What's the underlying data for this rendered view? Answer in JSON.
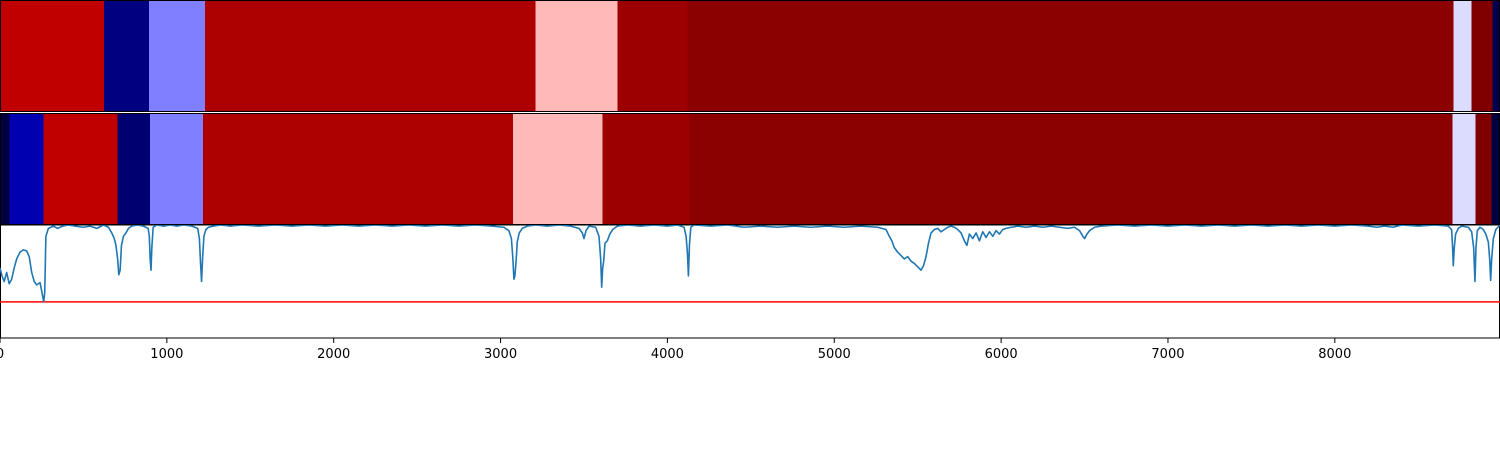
{
  "chart_data": {
    "type": "segmentation-timeline",
    "xlim": [
      0,
      8990
    ],
    "x_ticks": [
      0,
      1000,
      2000,
      3000,
      4000,
      5000,
      6000,
      7000,
      8000
    ],
    "x_tick_labels": [
      "0",
      "1000",
      "2000",
      "3000",
      "4000",
      "5000",
      "6000",
      "7000",
      "8000"
    ],
    "grid": false,
    "legend": "none",
    "rows": [
      {
        "segments": [
          {
            "start": 0,
            "end": 622,
            "color": "#c00000"
          },
          {
            "start": 622,
            "end": 892,
            "color": "#000080"
          },
          {
            "start": 892,
            "end": 1228,
            "color": "#7f7fff"
          },
          {
            "start": 1228,
            "end": 3208,
            "color": "#ad0000"
          },
          {
            "start": 3208,
            "end": 3700,
            "color": "#ffb9b9"
          },
          {
            "start": 3700,
            "end": 4120,
            "color": "#9c0000"
          },
          {
            "start": 4120,
            "end": 8710,
            "color": "#8b0000"
          },
          {
            "start": 8710,
            "end": 8818,
            "color": "#dcdcff"
          },
          {
            "start": 8818,
            "end": 8944,
            "color": "#800000"
          },
          {
            "start": 8944,
            "end": 8990,
            "color": "#000050"
          }
        ]
      },
      {
        "segments": [
          {
            "start": 0,
            "end": 57,
            "color": "#000040"
          },
          {
            "start": 57,
            "end": 262,
            "color": "#0000b0"
          },
          {
            "start": 262,
            "end": 705,
            "color": "#c00000"
          },
          {
            "start": 705,
            "end": 898,
            "color": "#000070"
          },
          {
            "start": 898,
            "end": 1216,
            "color": "#7f7fff"
          },
          {
            "start": 1216,
            "end": 3076,
            "color": "#ad0000"
          },
          {
            "start": 3076,
            "end": 3610,
            "color": "#ffb9b9"
          },
          {
            "start": 3610,
            "end": 4132,
            "color": "#9c0000"
          },
          {
            "start": 4132,
            "end": 8704,
            "color": "#8b0000"
          },
          {
            "start": 8704,
            "end": 8842,
            "color": "#dcdcff"
          },
          {
            "start": 8842,
            "end": 8938,
            "color": "#800000"
          },
          {
            "start": 8938,
            "end": 8990,
            "color": "#000040"
          }
        ]
      }
    ],
    "line_series": {
      "color": "#1f77b4",
      "ylim": [
        0,
        1
      ],
      "threshold": {
        "y": 0.32,
        "color": "#ff0000"
      },
      "points": [
        [
          0,
          0.62
        ],
        [
          12,
          0.55
        ],
        [
          25,
          0.5
        ],
        [
          40,
          0.58
        ],
        [
          55,
          0.48
        ],
        [
          70,
          0.52
        ],
        [
          85,
          0.62
        ],
        [
          100,
          0.7
        ],
        [
          120,
          0.76
        ],
        [
          140,
          0.78
        ],
        [
          160,
          0.77
        ],
        [
          175,
          0.72
        ],
        [
          190,
          0.58
        ],
        [
          205,
          0.5
        ],
        [
          220,
          0.47
        ],
        [
          240,
          0.49
        ],
        [
          252,
          0.4
        ],
        [
          262,
          0.32
        ],
        [
          268,
          0.4
        ],
        [
          275,
          0.9
        ],
        [
          290,
          0.97
        ],
        [
          320,
          0.99
        ],
        [
          345,
          0.97
        ],
        [
          375,
          0.99
        ],
        [
          410,
          1.0
        ],
        [
          450,
          0.99
        ],
        [
          500,
          0.98
        ],
        [
          540,
          0.99
        ],
        [
          580,
          0.97
        ],
        [
          620,
          1.0
        ],
        [
          650,
          0.98
        ],
        [
          670,
          0.93
        ],
        [
          685,
          0.88
        ],
        [
          695,
          0.82
        ],
        [
          705,
          0.7
        ],
        [
          712,
          0.56
        ],
        [
          720,
          0.6
        ],
        [
          728,
          0.82
        ],
        [
          740,
          0.9
        ],
        [
          755,
          0.93
        ],
        [
          770,
          0.97
        ],
        [
          790,
          0.99
        ],
        [
          820,
          1.0
        ],
        [
          860,
          0.99
        ],
        [
          888,
          0.97
        ],
        [
          895,
          0.9
        ],
        [
          900,
          0.7
        ],
        [
          905,
          0.6
        ],
        [
          910,
          0.8
        ],
        [
          918,
          0.98
        ],
        [
          940,
          1.0
        ],
        [
          980,
          0.99
        ],
        [
          1020,
          1.0
        ],
        [
          1060,
          0.99
        ],
        [
          1100,
          1.0
        ],
        [
          1150,
          0.99
        ],
        [
          1185,
          0.97
        ],
        [
          1195,
          0.88
        ],
        [
          1202,
          0.66
        ],
        [
          1208,
          0.5
        ],
        [
          1214,
          0.7
        ],
        [
          1222,
          0.9
        ],
        [
          1234,
          0.96
        ],
        [
          1250,
          0.98
        ],
        [
          1280,
          0.99
        ],
        [
          1320,
          1.0
        ],
        [
          1380,
          0.99
        ],
        [
          1450,
          1.0
        ],
        [
          1550,
          0.99
        ],
        [
          1650,
          1.0
        ],
        [
          1750,
          0.99
        ],
        [
          1850,
          1.0
        ],
        [
          1950,
          0.99
        ],
        [
          2050,
          1.0
        ],
        [
          2150,
          0.99
        ],
        [
          2250,
          1.0
        ],
        [
          2350,
          0.99
        ],
        [
          2450,
          1.0
        ],
        [
          2550,
          0.99
        ],
        [
          2650,
          1.0
        ],
        [
          2750,
          0.99
        ],
        [
          2850,
          1.0
        ],
        [
          2950,
          0.99
        ],
        [
          3020,
          0.98
        ],
        [
          3050,
          0.95
        ],
        [
          3065,
          0.88
        ],
        [
          3074,
          0.7
        ],
        [
          3080,
          0.52
        ],
        [
          3086,
          0.55
        ],
        [
          3094,
          0.7
        ],
        [
          3100,
          0.85
        ],
        [
          3112,
          0.93
        ],
        [
          3130,
          0.97
        ],
        [
          3160,
          0.99
        ],
        [
          3210,
          1.0
        ],
        [
          3280,
          0.99
        ],
        [
          3350,
          1.0
        ],
        [
          3420,
          0.99
        ],
        [
          3470,
          0.97
        ],
        [
          3490,
          0.93
        ],
        [
          3500,
          0.88
        ],
        [
          3512,
          0.95
        ],
        [
          3530,
          0.99
        ],
        [
          3570,
          0.98
        ],
        [
          3590,
          0.9
        ],
        [
          3600,
          0.7
        ],
        [
          3606,
          0.45
        ],
        [
          3612,
          0.62
        ],
        [
          3618,
          0.68
        ],
        [
          3626,
          0.84
        ],
        [
          3640,
          0.86
        ],
        [
          3655,
          0.92
        ],
        [
          3672,
          0.96
        ],
        [
          3700,
          0.99
        ],
        [
          3760,
          1.0
        ],
        [
          3840,
          0.99
        ],
        [
          3920,
          1.0
        ],
        [
          4000,
          0.99
        ],
        [
          4060,
          1.0
        ],
        [
          4100,
          0.98
        ],
        [
          4112,
          0.9
        ],
        [
          4120,
          0.75
        ],
        [
          4126,
          0.55
        ],
        [
          4132,
          0.82
        ],
        [
          4140,
          0.98
        ],
        [
          4160,
          1.0
        ],
        [
          4260,
          0.99
        ],
        [
          4360,
          1.0
        ],
        [
          4460,
          0.98
        ],
        [
          4560,
          0.99
        ],
        [
          4660,
          0.98
        ],
        [
          4760,
          0.99
        ],
        [
          4860,
          0.98
        ],
        [
          4960,
          0.99
        ],
        [
          5060,
          0.98
        ],
        [
          5160,
          0.99
        ],
        [
          5260,
          0.98
        ],
        [
          5310,
          0.96
        ],
        [
          5330,
          0.9
        ],
        [
          5345,
          0.86
        ],
        [
          5360,
          0.8
        ],
        [
          5380,
          0.76
        ],
        [
          5400,
          0.73
        ],
        [
          5420,
          0.7
        ],
        [
          5440,
          0.72
        ],
        [
          5460,
          0.68
        ],
        [
          5480,
          0.66
        ],
        [
          5500,
          0.63
        ],
        [
          5520,
          0.6
        ],
        [
          5535,
          0.64
        ],
        [
          5550,
          0.72
        ],
        [
          5565,
          0.84
        ],
        [
          5580,
          0.93
        ],
        [
          5600,
          0.96
        ],
        [
          5620,
          0.97
        ],
        [
          5640,
          0.94
        ],
        [
          5660,
          0.96
        ],
        [
          5680,
          0.98
        ],
        [
          5700,
          0.99
        ],
        [
          5720,
          0.98
        ],
        [
          5740,
          0.96
        ],
        [
          5760,
          0.93
        ],
        [
          5780,
          0.86
        ],
        [
          5795,
          0.82
        ],
        [
          5810,
          0.92
        ],
        [
          5830,
          0.88
        ],
        [
          5850,
          0.93
        ],
        [
          5870,
          0.86
        ],
        [
          5890,
          0.94
        ],
        [
          5910,
          0.89
        ],
        [
          5930,
          0.94
        ],
        [
          5950,
          0.9
        ],
        [
          5970,
          0.95
        ],
        [
          5990,
          0.92
        ],
        [
          6010,
          0.96
        ],
        [
          6030,
          0.97
        ],
        [
          6060,
          0.98
        ],
        [
          6100,
          0.99
        ],
        [
          6150,
          0.98
        ],
        [
          6200,
          0.99
        ],
        [
          6250,
          0.98
        ],
        [
          6300,
          0.99
        ],
        [
          6350,
          0.98
        ],
        [
          6400,
          0.97
        ],
        [
          6440,
          0.98
        ],
        [
          6470,
          0.95
        ],
        [
          6490,
          0.9
        ],
        [
          6500,
          0.88
        ],
        [
          6515,
          0.92
        ],
        [
          6530,
          0.95
        ],
        [
          6560,
          0.98
        ],
        [
          6600,
          0.99
        ],
        [
          6700,
          1.0
        ],
        [
          6800,
          0.99
        ],
        [
          6900,
          1.0
        ],
        [
          7000,
          0.99
        ],
        [
          7100,
          1.0
        ],
        [
          7200,
          0.99
        ],
        [
          7300,
          1.0
        ],
        [
          7400,
          0.99
        ],
        [
          7500,
          1.0
        ],
        [
          7600,
          0.99
        ],
        [
          7700,
          1.0
        ],
        [
          7800,
          0.99
        ],
        [
          7900,
          1.0
        ],
        [
          8000,
          0.99
        ],
        [
          8100,
          1.0
        ],
        [
          8200,
          0.99
        ],
        [
          8250,
          0.98
        ],
        [
          8300,
          0.99
        ],
        [
          8350,
          0.98
        ],
        [
          8400,
          1.0
        ],
        [
          8500,
          0.99
        ],
        [
          8600,
          1.0
        ],
        [
          8680,
          0.99
        ],
        [
          8700,
          0.96
        ],
        [
          8706,
          0.8
        ],
        [
          8710,
          0.64
        ],
        [
          8716,
          0.8
        ],
        [
          8724,
          0.92
        ],
        [
          8740,
          0.97
        ],
        [
          8760,
          0.99
        ],
        [
          8800,
          0.98
        ],
        [
          8820,
          0.94
        ],
        [
          8832,
          0.8
        ],
        [
          8840,
          0.5
        ],
        [
          8846,
          0.8
        ],
        [
          8854,
          0.95
        ],
        [
          8870,
          0.98
        ],
        [
          8890,
          0.96
        ],
        [
          8905,
          0.92
        ],
        [
          8920,
          0.85
        ],
        [
          8928,
          0.7
        ],
        [
          8934,
          0.51
        ],
        [
          8940,
          0.7
        ],
        [
          8950,
          0.88
        ],
        [
          8965,
          0.96
        ],
        [
          8990,
          1.0
        ]
      ]
    }
  }
}
